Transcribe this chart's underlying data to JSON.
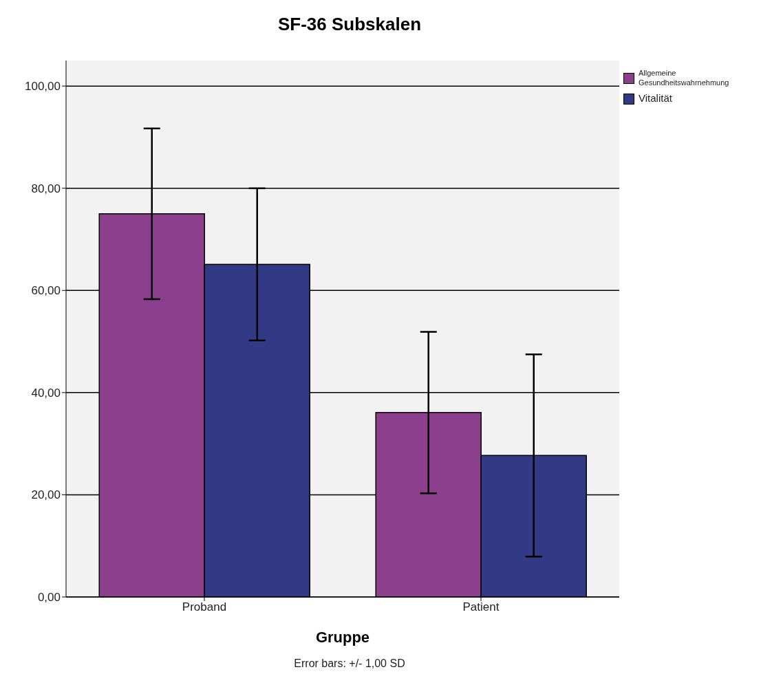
{
  "chart_data": {
    "type": "bar",
    "title": "SF-36 Subskalen",
    "xlabel": "Gruppe",
    "categories": [
      "Proband",
      "Patient"
    ],
    "series": [
      {
        "name": "Allgemeine Gesundheitswahrnehmung",
        "color": "#8b3f8c",
        "values": [
          75,
          36.1
        ],
        "errors": [
          16.7,
          15.8
        ]
      },
      {
        "name": "Vitalität",
        "color": "#333a85",
        "values": [
          65.1,
          27.7
        ],
        "errors": [
          14.9,
          19.8
        ]
      }
    ],
    "ylim": [
      0,
      105
    ],
    "yticks": [
      {
        "value": 0,
        "label": "0,00"
      },
      {
        "value": 20,
        "label": "20,00"
      },
      {
        "value": 40,
        "label": "40,00"
      },
      {
        "value": 60,
        "label": "60,00"
      },
      {
        "value": 80,
        "label": "80,00"
      },
      {
        "value": 100,
        "label": "100,00"
      }
    ],
    "grid": "y",
    "legend": "top right",
    "annotations": [
      "Error bars: +/- 1,00 SD"
    ]
  }
}
